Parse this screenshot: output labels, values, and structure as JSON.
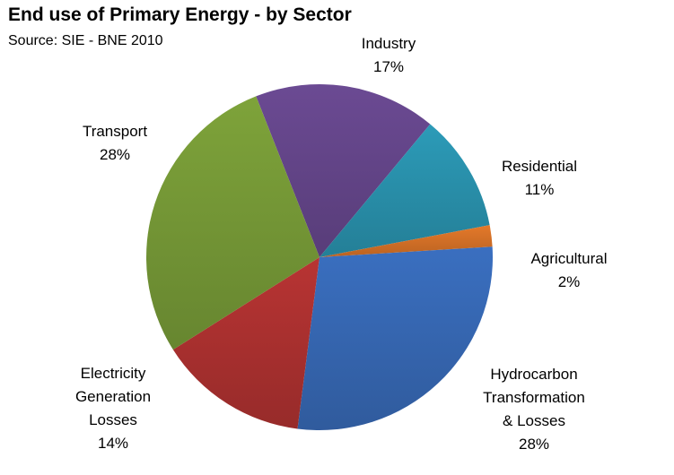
{
  "chart_data": {
    "type": "pie",
    "title": "End use of Primary Energy - by Sector",
    "subtitle": "Source: SIE - BNE 2010",
    "slices": [
      {
        "label": [
          "Industry"
        ],
        "value": 17,
        "value_label": "17%",
        "color": "#6b4a93"
      },
      {
        "label": [
          "Residential"
        ],
        "value": 11,
        "value_label": "11%",
        "color": "#2c9bb8"
      },
      {
        "label": [
          "Agricultural"
        ],
        "value": 2,
        "value_label": "2%",
        "color": "#e4792a"
      },
      {
        "label": [
          "Hydrocarbon",
          "Transformation",
          "& Losses"
        ],
        "value": 28,
        "value_label": "28%",
        "color": "#3a6fc0"
      },
      {
        "label": [
          "Electricity",
          "Generation",
          "Losses"
        ],
        "value": 14,
        "value_label": "14%",
        "color": "#b83433"
      },
      {
        "label": [
          "Transport"
        ],
        "value": 28,
        "value_label": "28%",
        "color": "#7ea33a"
      }
    ],
    "legend": "none",
    "grid": false
  }
}
